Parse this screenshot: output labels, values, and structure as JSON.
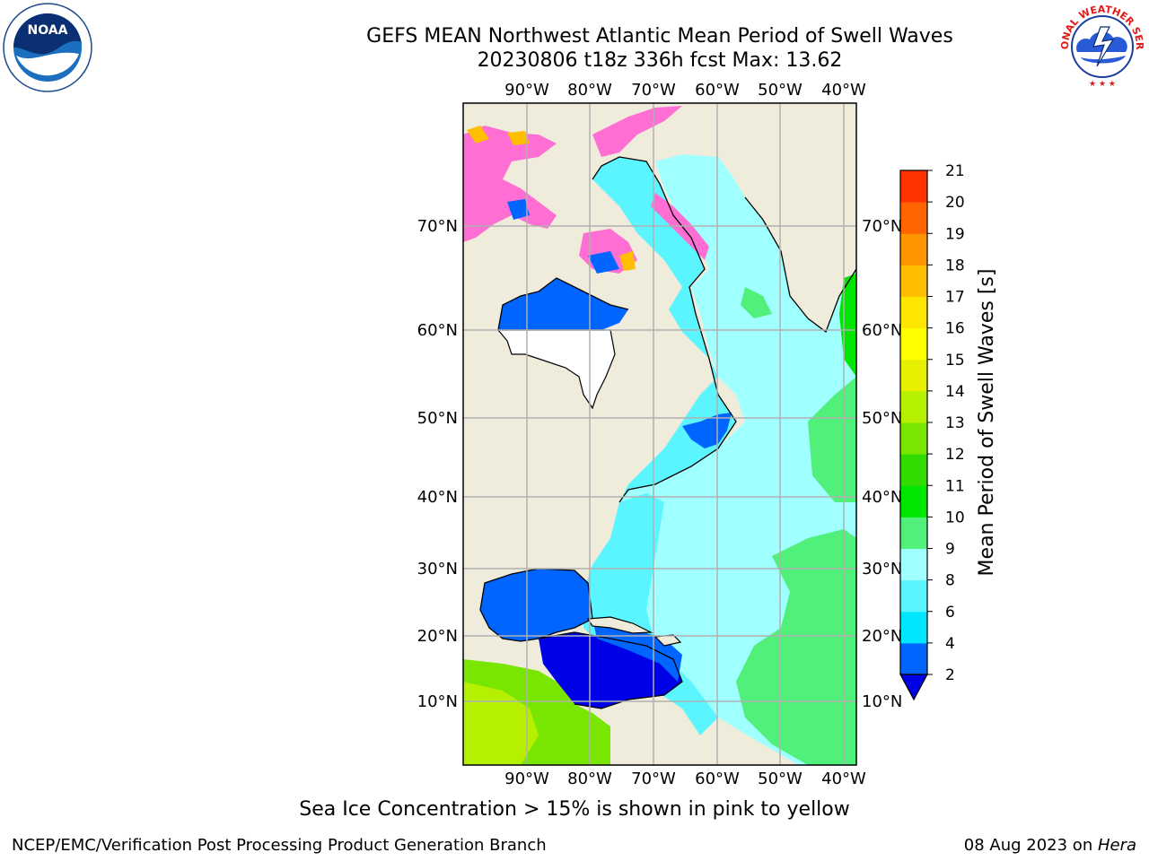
{
  "title_line1": "GEFS MEAN Northwest Atlantic Mean Period of Swell Waves",
  "title_line2": "20230806 t18z 336h fcst   Max: 13.62",
  "logos": {
    "left": {
      "icon": "noaa-logo",
      "text": "NOAA"
    },
    "right": {
      "icon": "national-weather-service-logo",
      "text": "NATIONAL WEATHER SERVICE"
    }
  },
  "map": {
    "lon_labels": [
      "90°W",
      "80°W",
      "70°W",
      "60°W",
      "50°W",
      "40°W"
    ],
    "lat_labels": [
      "70°N",
      "60°N",
      "50°N",
      "40°N",
      "30°N",
      "20°N",
      "10°N"
    ],
    "land_color": "#efecdc",
    "grid_color": "#b0b0b0"
  },
  "colorbar": {
    "label": "Mean Period of Swell Waves [s]",
    "ticks": [
      "2",
      "4",
      "6",
      "8",
      "9",
      "10",
      "11",
      "12",
      "13",
      "14",
      "15",
      "16",
      "17",
      "18",
      "19",
      "20",
      "21"
    ],
    "colors": [
      "#0064ff",
      "#00e6ff",
      "#5af5ff",
      "#a0ffff",
      "#50f07a",
      "#00e600",
      "#32dc00",
      "#78e600",
      "#b4f000",
      "#e6f000",
      "#ffff00",
      "#ffe600",
      "#ffbe00",
      "#ff9600",
      "#ff6400",
      "#ff3200"
    ],
    "under_color": "#0000e6"
  },
  "note": "Sea Ice Concentration > 15% is shown in pink to yellow",
  "footer_left": "NCEP/EMC/Verification Post Processing Product Generation Branch",
  "footer_right_prefix": "08 Aug 2023 on ",
  "footer_right_host": "Hera"
}
